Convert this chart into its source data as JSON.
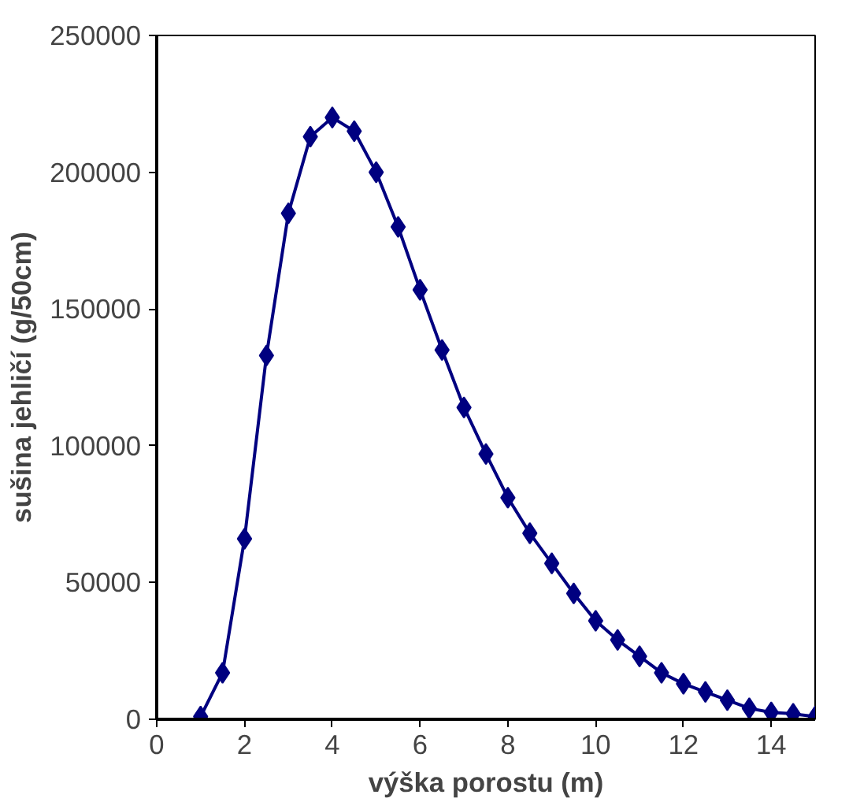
{
  "chart_data": {
    "type": "line",
    "xlabel": "výška porostu (m)",
    "ylabel": "sušina jehličí (g/50cm)",
    "series": [
      {
        "color": "#000080",
        "x": [
          1,
          1.5,
          2,
          2.5,
          3,
          3.5,
          4,
          4.5,
          5,
          5.5,
          6,
          6.5,
          7,
          7.5,
          8,
          8.5,
          9,
          9.5,
          10,
          10.5,
          11,
          11.5,
          12,
          12.5,
          13,
          13.5,
          14,
          14.5,
          15
        ],
        "values": [
          1000,
          17000,
          66000,
          133000,
          185000,
          213000,
          220000,
          215000,
          200000,
          180000,
          157000,
          135000,
          114000,
          97000,
          81000,
          68000,
          57000,
          46000,
          36000,
          29000,
          23000,
          17000,
          13000,
          10000,
          7000,
          4000,
          2500,
          2000,
          1000
        ]
      }
    ],
    "xlim": [
      0,
      15
    ],
    "xticks": [
      0,
      2,
      4,
      6,
      8,
      10,
      12,
      14
    ],
    "ylim": [
      0,
      250000
    ],
    "yticks": [
      0,
      50000,
      100000,
      150000,
      200000,
      250000
    ],
    "grid": false,
    "marker": "diamond",
    "line_style": "solid"
  }
}
